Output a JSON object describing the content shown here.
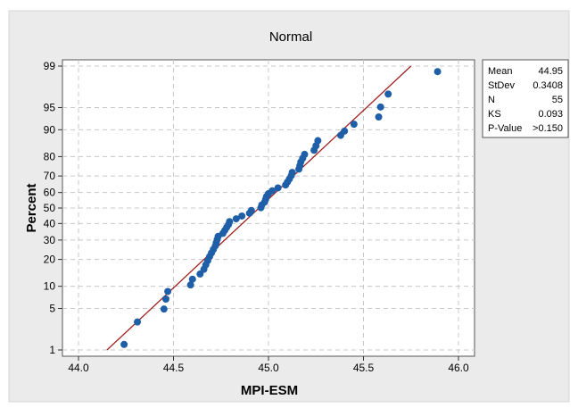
{
  "chart_data": {
    "type": "scatter",
    "title": "Normal",
    "xlabel": "MPI-ESM",
    "ylabel": "Percent",
    "scale": "normal-probability",
    "xlim": [
      44.0,
      46.0
    ],
    "x_ticks": [
      "44.0",
      "44.5",
      "45.0",
      "45.5",
      "46.0"
    ],
    "y_ticks": [
      1,
      5,
      10,
      20,
      30,
      40,
      50,
      60,
      70,
      80,
      90,
      95,
      99
    ],
    "y_tick_labels": [
      "1",
      "5",
      "10",
      "20",
      "30",
      "40",
      "50",
      "60",
      "70",
      "80",
      "90",
      "95",
      "99"
    ],
    "grid": true,
    "series": [
      {
        "points": [
          {
            "x": 44.24,
            "y": 1.27
          },
          {
            "x": 44.31,
            "y": 3.1
          },
          {
            "x": 44.45,
            "y": 4.9
          },
          {
            "x": 44.46,
            "y": 6.8
          },
          {
            "x": 44.47,
            "y": 8.6
          },
          {
            "x": 44.59,
            "y": 10.4
          },
          {
            "x": 44.6,
            "y": 12.2
          },
          {
            "x": 44.64,
            "y": 14.0
          },
          {
            "x": 44.66,
            "y": 15.8
          },
          {
            "x": 44.67,
            "y": 17.6
          },
          {
            "x": 44.68,
            "y": 19.4
          },
          {
            "x": 44.69,
            "y": 21.3
          },
          {
            "x": 44.7,
            "y": 23.1
          },
          {
            "x": 44.71,
            "y": 24.9
          },
          {
            "x": 44.72,
            "y": 26.7
          },
          {
            "x": 44.725,
            "y": 28.5
          },
          {
            "x": 44.73,
            "y": 30.3
          },
          {
            "x": 44.735,
            "y": 32.1
          },
          {
            "x": 44.76,
            "y": 33.9
          },
          {
            "x": 44.77,
            "y": 35.7
          },
          {
            "x": 44.78,
            "y": 37.6
          },
          {
            "x": 44.79,
            "y": 39.4
          },
          {
            "x": 44.795,
            "y": 41.2
          },
          {
            "x": 44.83,
            "y": 43.0
          },
          {
            "x": 44.86,
            "y": 44.8
          },
          {
            "x": 44.9,
            "y": 46.6
          },
          {
            "x": 44.91,
            "y": 48.4
          },
          {
            "x": 44.96,
            "y": 50.2
          },
          {
            "x": 44.965,
            "y": 52.0
          },
          {
            "x": 44.98,
            "y": 53.9
          },
          {
            "x": 44.985,
            "y": 55.7
          },
          {
            "x": 44.99,
            "y": 57.5
          },
          {
            "x": 45.0,
            "y": 59.3
          },
          {
            "x": 45.02,
            "y": 61.1
          },
          {
            "x": 45.05,
            "y": 62.9
          },
          {
            "x": 45.09,
            "y": 64.7
          },
          {
            "x": 45.1,
            "y": 66.5
          },
          {
            "x": 45.11,
            "y": 68.3
          },
          {
            "x": 45.12,
            "y": 70.2
          },
          {
            "x": 45.125,
            "y": 72.0
          },
          {
            "x": 45.16,
            "y": 73.8
          },
          {
            "x": 45.165,
            "y": 75.6
          },
          {
            "x": 45.17,
            "y": 77.4
          },
          {
            "x": 45.18,
            "y": 79.2
          },
          {
            "x": 45.19,
            "y": 81.0
          },
          {
            "x": 45.24,
            "y": 82.8
          },
          {
            "x": 45.25,
            "y": 84.6
          },
          {
            "x": 45.26,
            "y": 86.5
          },
          {
            "x": 45.38,
            "y": 88.3
          },
          {
            "x": 45.4,
            "y": 89.6
          },
          {
            "x": 45.45,
            "y": 91.5
          },
          {
            "x": 45.58,
            "y": 93.2
          },
          {
            "x": 45.59,
            "y": 95.1
          },
          {
            "x": 45.63,
            "y": 96.9
          },
          {
            "x": 45.89,
            "y": 98.73
          }
        ]
      }
    ],
    "fit_line": {
      "x_start": 44.15,
      "x_end": 45.75,
      "y_start": 1.0,
      "y_end": 99.0
    },
    "colors": {
      "points": "#1f5fa8",
      "fit_line": "#a02020",
      "grid": "#c8c8c8",
      "background": "#ebebeb",
      "plot_bg": "#ffffff"
    }
  },
  "stats_box": {
    "rows": [
      {
        "label": "Mean",
        "value": "44.95"
      },
      {
        "label": "StDev",
        "value": "0.3408"
      },
      {
        "label": "N",
        "value": "55"
      },
      {
        "label": "KS",
        "value": "0.093"
      },
      {
        "label": "P-Value",
        "value": ">0.150"
      }
    ]
  }
}
